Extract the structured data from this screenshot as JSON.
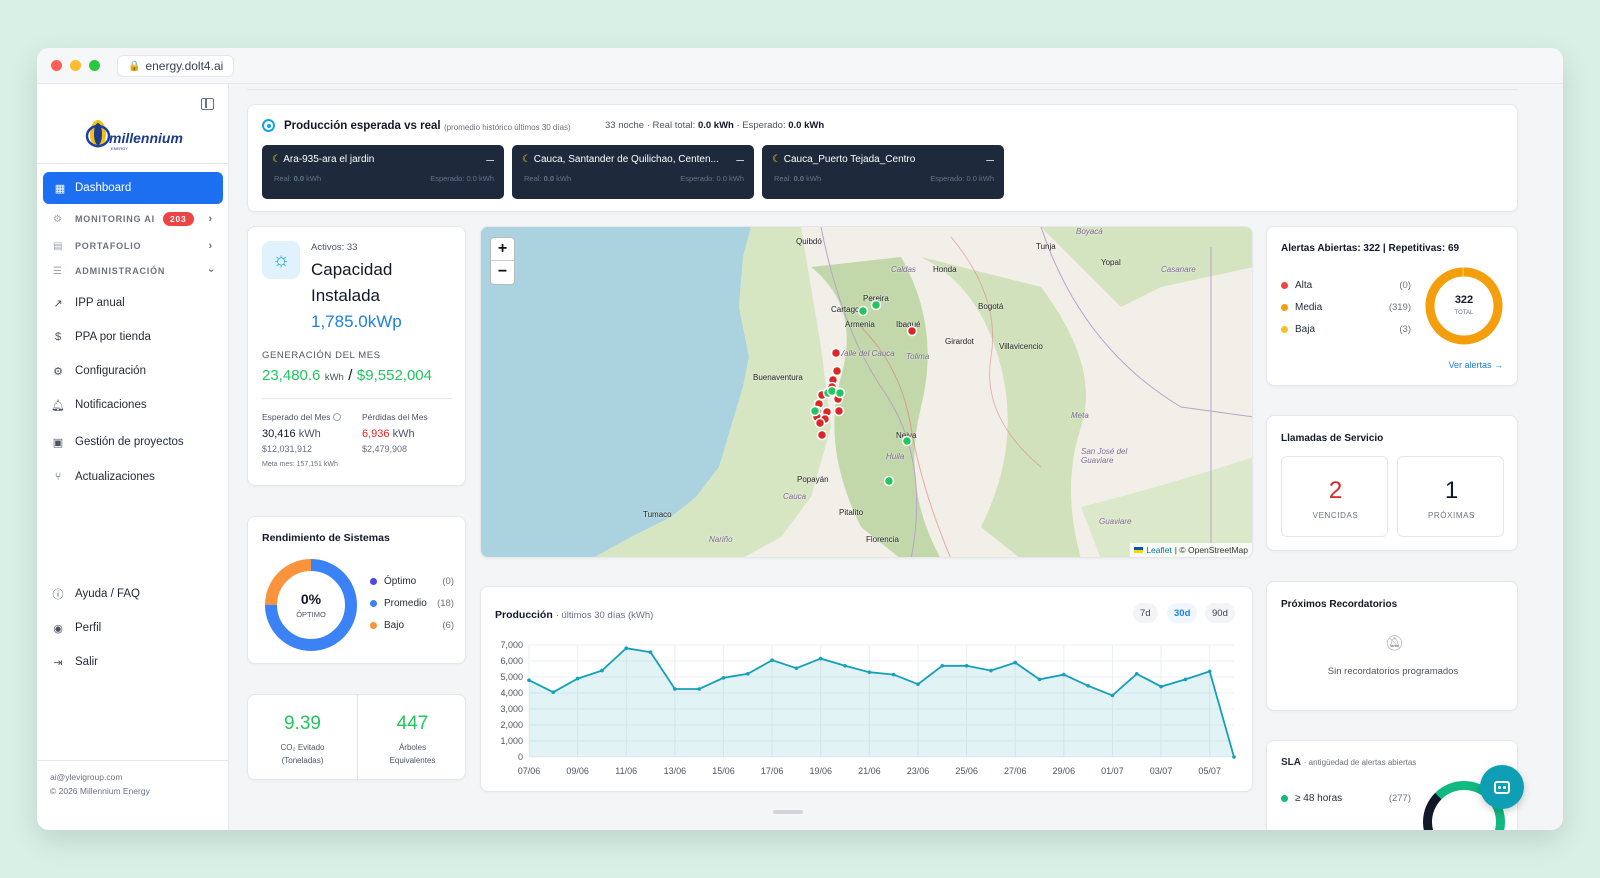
{
  "browser": {
    "url": "energy.dolt4.ai"
  },
  "brand": {
    "name": "millennium",
    "tagline": "ENERGY"
  },
  "sidebar": {
    "dashboard": "Dashboard",
    "monitoring": "MONITORING AI",
    "monitoring_badge": "203",
    "portafolio": "PORTAFOLIO",
    "administracion": "ADMINISTRACIÓN",
    "sub": [
      "IPP anual",
      "PPA por tienda",
      "Configuración",
      "Notificaciones"
    ],
    "gestion": "Gestión de proyectos",
    "actualizaciones": "Actualizaciones",
    "ayuda": "Ayuda / FAQ",
    "perfil": "Perfil",
    "salir": "Salir",
    "email": "ai@ylevigroup.com",
    "copyright": "© 2026 Millennium Energy"
  },
  "production_top": {
    "title": "Producción esperada vs real",
    "subtitle": "(promedio histórico últimos 30 días)",
    "summary_prefix": "33 noche · Real total: ",
    "real_total": "0.0 kWh",
    "summary_mid": " · Esperado: ",
    "expected_total": "0.0 kWh",
    "sites": [
      {
        "name": "Ara-935-ara el jardin",
        "real_label": "Real: ",
        "real": "0.0",
        "unit": " kWh",
        "expected": "Esperado: 0.0 kWh"
      },
      {
        "name": "Cauca, Santander de Quilichao, Centen...",
        "real_label": "Real: ",
        "real": "0.0",
        "unit": " kWh",
        "expected": "Esperado: 0.0 kWh"
      },
      {
        "name": "Cauca_Puerto Tejada_Centro",
        "real_label": "Real: ",
        "real": "0.0",
        "unit": " kWh",
        "expected": "Esperado: 0.0 kWh"
      }
    ]
  },
  "capacity": {
    "activos": "Activos: 33",
    "title1": "Capacidad",
    "title2": "Instalada",
    "value": "1,785.0kWp",
    "gen_label": "GENERACIÓN DEL MES",
    "gen_kwh": "23,480.6",
    "gen_unit": "kWh",
    "gen_sep": "/",
    "gen_money": "$9,552,004",
    "esperado_label": "Esperado del Mes",
    "esperado_kwh": "30,416",
    "esperado_money": "$12,031,912",
    "perdidas_label": "Pérdidas del Mes",
    "perdidas_kwh": "6,936",
    "perdidas_money": "$2,479,908",
    "kwh_unit": "kWh",
    "meta": "Meta mes: 157,151 kWh"
  },
  "rendimiento": {
    "title": "Rendimiento de Sistemas",
    "pct": "0%",
    "center_label": "ÓPTIMO",
    "items": [
      {
        "label": "Óptimo",
        "count": "(0)",
        "value": 0,
        "color": "#4f46e5"
      },
      {
        "label": "Promedio",
        "count": "(18)",
        "value": 18,
        "color": "#3b82f6"
      },
      {
        "label": "Bajo",
        "count": "(6)",
        "value": 6,
        "color": "#fb923c"
      }
    ]
  },
  "eco": {
    "co2": "9.39",
    "co2_label1": "CO₂ Evitado",
    "co2_label2": "(Toneladas)",
    "trees": "447",
    "trees_label1": "Árboles",
    "trees_label2": "Equivalentes"
  },
  "map": {
    "zoom_in": "+",
    "zoom_out": "−",
    "attribution_leaflet": "Leaflet",
    "attribution_osm": "| © OpenStreetMap",
    "places": [
      "Quibdó",
      "Tunja",
      "Boyacá",
      "Yopal",
      "Caldas",
      "Honda",
      "Casanare",
      "Pereira",
      "Cartago",
      "Armenia",
      "Ibagué",
      "Bogotá",
      "Girardot",
      "Villavicencio",
      "Valle del Cauca",
      "Tolima",
      "Buenaventura",
      "Meta",
      "Neiva",
      "Huila",
      "San José del Guaviare",
      "Popayán",
      "Cauca",
      "Tumaco",
      "Pitalito",
      "Nariño",
      "Florencia",
      "Guaviare"
    ]
  },
  "produccion": {
    "title": "Producción",
    "subtitle": "· últimos 30 días (kWh)",
    "ranges": [
      "7d",
      "30d",
      "90d"
    ],
    "active_range": "30d"
  },
  "chart_data": {
    "type": "area",
    "title": "Producción",
    "xlabel": "",
    "ylabel": "",
    "ylim": [
      0,
      7000
    ],
    "yticks": [
      "7,000",
      "6,000",
      "5,000",
      "4,000",
      "3,000",
      "2,000",
      "1,000",
      "0"
    ],
    "xtick_labels": [
      "07/06",
      "09/06",
      "11/06",
      "13/06",
      "15/06",
      "17/06",
      "19/06",
      "21/06",
      "23/06",
      "25/06",
      "27/06",
      "29/06",
      "01/07",
      "03/07",
      "05/07"
    ],
    "x": [
      "07/06",
      "08/06",
      "09/06",
      "10/06",
      "11/06",
      "12/06",
      "13/06",
      "14/06",
      "15/06",
      "16/06",
      "17/06",
      "18/06",
      "19/06",
      "20/06",
      "21/06",
      "22/06",
      "23/06",
      "24/06",
      "25/06",
      "26/06",
      "27/06",
      "28/06",
      "29/06",
      "30/06",
      "01/07",
      "02/07",
      "03/07",
      "04/07",
      "05/07",
      "06/07"
    ],
    "values": [
      4800,
      4050,
      4900,
      5400,
      6800,
      6550,
      4250,
      4250,
      4950,
      5200,
      6050,
      5550,
      6150,
      5700,
      5300,
      5150,
      4550,
      5700,
      5700,
      5400,
      5900,
      4850,
      5150,
      4450,
      3850,
      5200,
      4400,
      4850,
      5350,
      0
    ],
    "color": "#14a0b8",
    "grid": true
  },
  "alertas": {
    "title": "Alertas Abiertas: 322 | Repetitivas: 69",
    "total": "322",
    "total_label": "TOTAL",
    "items": [
      {
        "label": "Alta",
        "count": "(0)",
        "value": 0,
        "color": "#ef4444"
      },
      {
        "label": "Media",
        "count": "(319)",
        "value": 319,
        "color": "#f59e0b"
      },
      {
        "label": "Baja",
        "count": "(3)",
        "value": 3,
        "color": "#fbbf24"
      }
    ],
    "link": "Ver alertas →"
  },
  "llamadas": {
    "title": "Llamadas de Servicio",
    "vencidas": "2",
    "vencidas_label": "VENCIDAS",
    "proximas": "1",
    "proximas_label": "PRÓXIMAS"
  },
  "recordatorios": {
    "title": "Próximos Recordatorios",
    "empty": "Sin recordatorios programados"
  },
  "sla": {
    "title": "SLA",
    "subtitle": "· antigüedad de alertas abiertas",
    "items": [
      {
        "label": "≥ 48 horas",
        "count": "(277)",
        "color": "#10b981"
      }
    ]
  }
}
